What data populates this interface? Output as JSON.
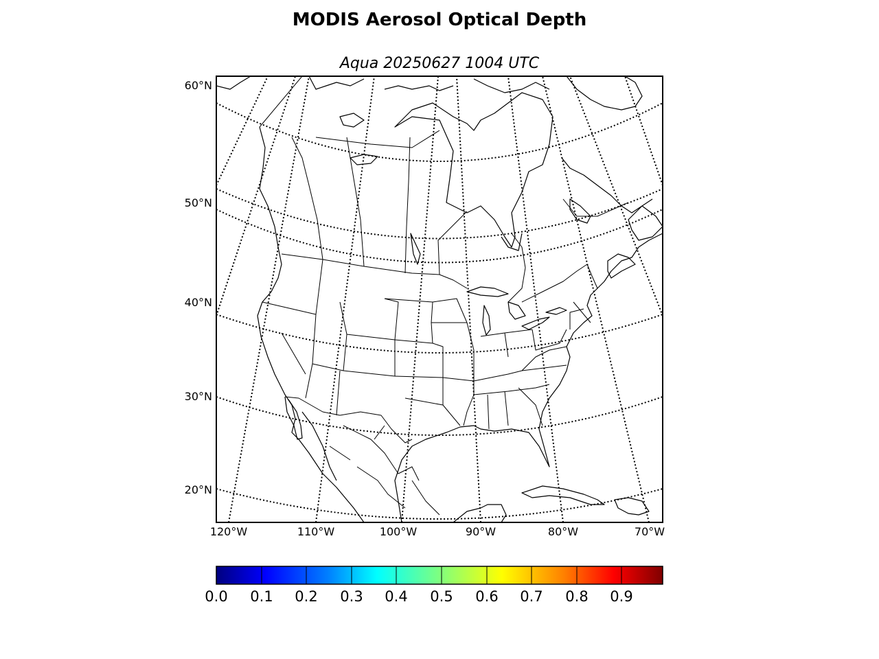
{
  "figure": {
    "title": "MODIS Aerosol Optical Depth",
    "subtitle": "Aqua 20250627 1004 UTC"
  },
  "map": {
    "projection": "lambert-conformal",
    "region": "North America",
    "graticule_style": "dotted",
    "lat_labels": [
      "60°N",
      "50°N",
      "40°N",
      "30°N",
      "20°N"
    ],
    "lon_labels": [
      "120°W",
      "110°W",
      "100°W",
      "90°W",
      "80°W",
      "70°W"
    ],
    "boundaries": [
      "coastlines",
      "country borders",
      "US states",
      "Canadian provinces",
      "Mexican states"
    ]
  },
  "colorbar": {
    "colormap": "jet",
    "range": [
      0.0,
      1.0
    ],
    "tick_labels": [
      "0.0",
      "0.1",
      "0.2",
      "0.3",
      "0.4",
      "0.5",
      "0.6",
      "0.7",
      "0.8",
      "0.9"
    ],
    "colors": [
      "#00007f",
      "#0000ff",
      "#007fff",
      "#00ffff",
      "#7fff7f",
      "#ffff00",
      "#ff7f00",
      "#ff0000",
      "#7f0000"
    ]
  }
}
